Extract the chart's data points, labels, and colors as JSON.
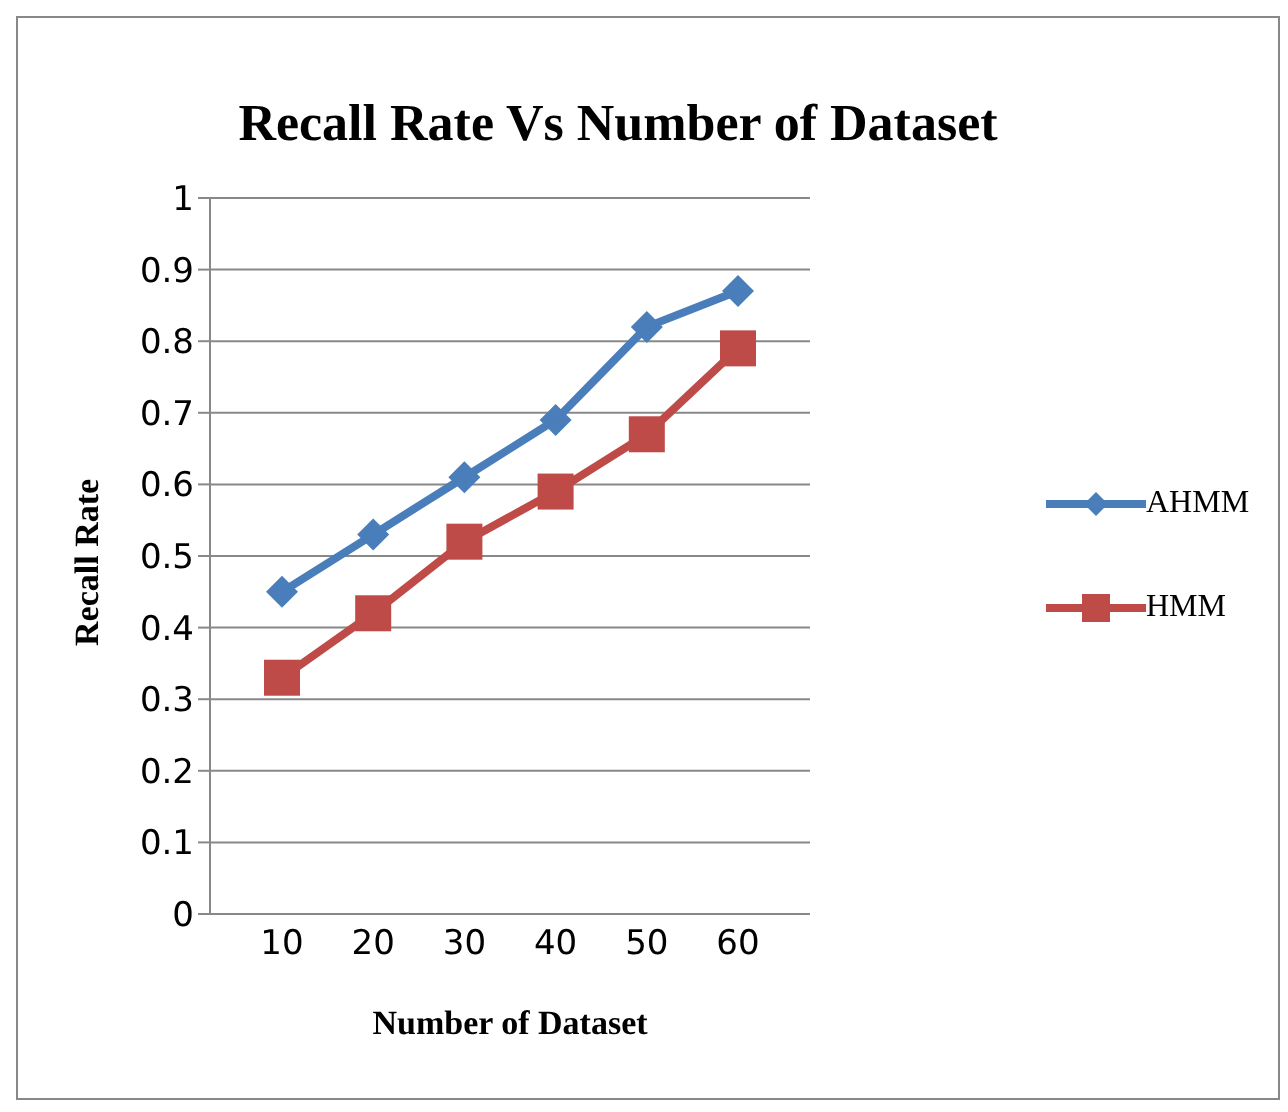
{
  "chart_data": {
    "type": "line",
    "title": "Recall Rate Vs Number of Dataset",
    "xlabel": "Number of Dataset",
    "ylabel": "Recall Rate",
    "categories": [
      "10",
      "20",
      "30",
      "40",
      "50",
      "60"
    ],
    "series": [
      {
        "name": "AHMM",
        "color": "#4a7ebb",
        "marker": "diamond",
        "values": [
          0.45,
          0.53,
          0.61,
          0.69,
          0.82,
          0.87
        ]
      },
      {
        "name": "HMM",
        "color": "#be4b48",
        "marker": "square",
        "values": [
          0.33,
          0.42,
          0.52,
          0.59,
          0.67,
          0.79
        ]
      }
    ],
    "ylim": [
      0,
      1
    ],
    "yticks": [
      0,
      0.1,
      0.2,
      0.3,
      0.4,
      0.5,
      0.6,
      0.7,
      0.8,
      0.9,
      1
    ],
    "grid": "y",
    "legend": "right",
    "line_style": "solid"
  }
}
